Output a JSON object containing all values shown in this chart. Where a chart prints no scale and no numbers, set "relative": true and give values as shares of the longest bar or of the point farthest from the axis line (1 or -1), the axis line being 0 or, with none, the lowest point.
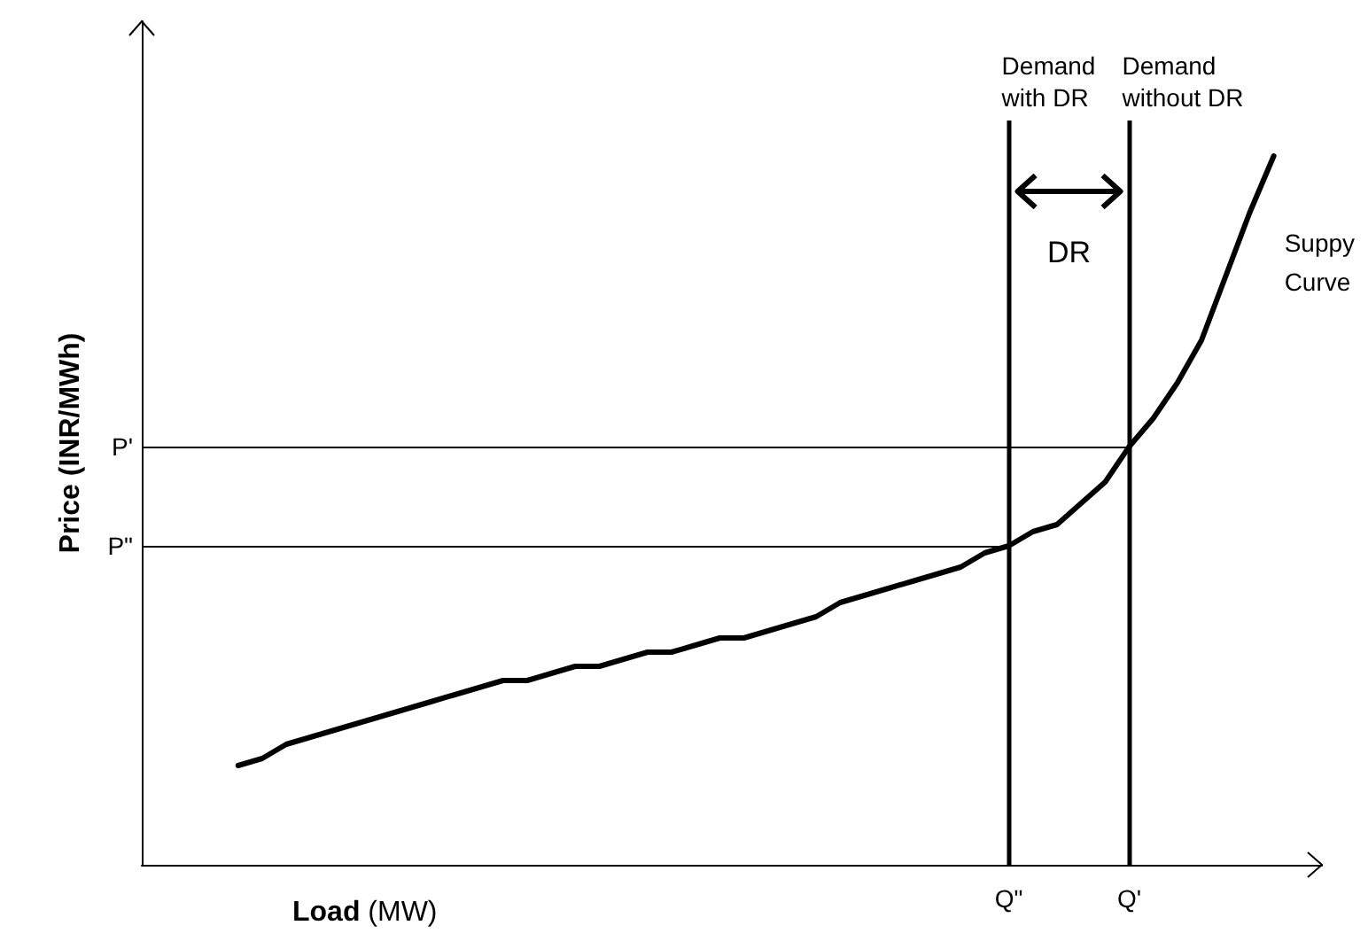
{
  "chart_data": {
    "type": "line",
    "relative": true,
    "xlabel": "Load (MW)",
    "ylabel": "Price (INR/MWh)",
    "categories": [
      null,
      null,
      null,
      null,
      null,
      null,
      null,
      null,
      null,
      null,
      null,
      null,
      null,
      null,
      null,
      null,
      null,
      null,
      null,
      null,
      null,
      null,
      null,
      null,
      null,
      null,
      null,
      null,
      null,
      null,
      null,
      null,
      null,
      null,
      null,
      null,
      "Q\"",
      null,
      null,
      null,
      null,
      "Q'",
      null,
      null,
      null,
      null,
      null,
      null,
      null,
      null
    ],
    "series": [
      {
        "name": "Suppy Curve",
        "color": "#000000",
        "values": [
          null,
          null,
          null,
          null,
          0.14,
          0.15,
          0.17,
          0.18,
          0.19,
          0.2,
          0.21,
          0.22,
          0.23,
          0.24,
          0.25,
          0.26,
          0.26,
          0.27,
          0.28,
          0.28,
          0.29,
          0.3,
          0.3,
          0.31,
          0.32,
          0.32,
          0.33,
          0.34,
          0.35,
          0.37,
          0.38,
          0.39,
          0.4,
          0.41,
          0.42,
          0.44,
          0.45,
          0.47,
          0.48,
          0.51,
          0.54,
          0.59,
          0.63,
          0.68,
          0.74,
          0.83,
          0.92,
          1,
          null,
          null
        ]
      }
    ],
    "ref_lines": [
      {
        "axis": "x",
        "value": "Q\"",
        "label": "Demand with DR",
        "color": "#000000"
      },
      {
        "axis": "x",
        "value": "Q'",
        "label": "Demand without DR",
        "color": "#000000"
      },
      {
        "axis": "y",
        "value": 0.45,
        "label": "P\"",
        "color": "#000000"
      },
      {
        "axis": "y",
        "value": 0.59,
        "label": "P'",
        "color": "#000000"
      }
    ],
    "annotations": [
      "DR"
    ],
    "marker": "none",
    "line_style": "solid",
    "grid": false
  }
}
